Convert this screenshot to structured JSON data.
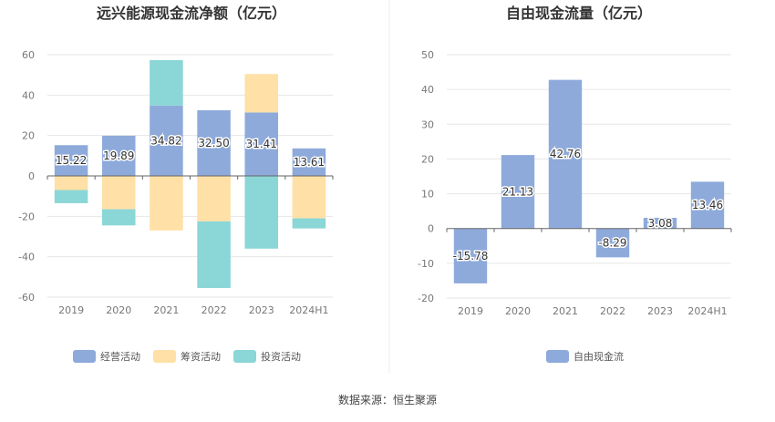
{
  "source": "数据来源：恒生聚源",
  "chart_data": [
    {
      "type": "bar",
      "stacked": true,
      "title": "远兴能源现金流净额（亿元）",
      "categories": [
        "2019",
        "2020",
        "2021",
        "2022",
        "2023",
        "2024H1"
      ],
      "ylim": [
        -60,
        60
      ],
      "yticks": [
        60,
        40,
        20,
        0,
        -20,
        -40,
        -60
      ],
      "grid": true,
      "legend": "bottom",
      "series": [
        {
          "name": "经营活动",
          "color": "#8eaadb",
          "values": [
            15.22,
            19.89,
            34.82,
            32.5,
            31.41,
            13.61
          ],
          "labels": [
            "15.22",
            "19.89",
            "34.82",
            "32.50",
            "31.41",
            "13.61"
          ]
        },
        {
          "name": "筹资活动",
          "color": "#ffe0a6",
          "values": [
            -7.0,
            -16.5,
            -27.0,
            -22.5,
            19.0,
            -21.0
          ]
        },
        {
          "name": "投资活动",
          "color": "#8bd6d6",
          "values": [
            -6.5,
            -8.0,
            22.5,
            -33.0,
            -36.0,
            -5.0
          ]
        }
      ]
    },
    {
      "type": "bar",
      "title": "自由现金流量（亿元）",
      "categories": [
        "2019",
        "2020",
        "2021",
        "2022",
        "2023",
        "2024H1"
      ],
      "ylim": [
        -20,
        50
      ],
      "yticks": [
        50,
        40,
        30,
        20,
        10,
        0,
        -10,
        -20
      ],
      "grid": true,
      "legend": "bottom",
      "series": [
        {
          "name": "自由现金流",
          "color": "#8eaadb",
          "values": [
            -15.78,
            21.13,
            42.76,
            -8.29,
            3.08,
            13.46
          ],
          "labels": [
            "-15.78",
            "21.13",
            "42.76",
            "-8.29",
            "3.08",
            "13.46"
          ]
        }
      ]
    }
  ]
}
